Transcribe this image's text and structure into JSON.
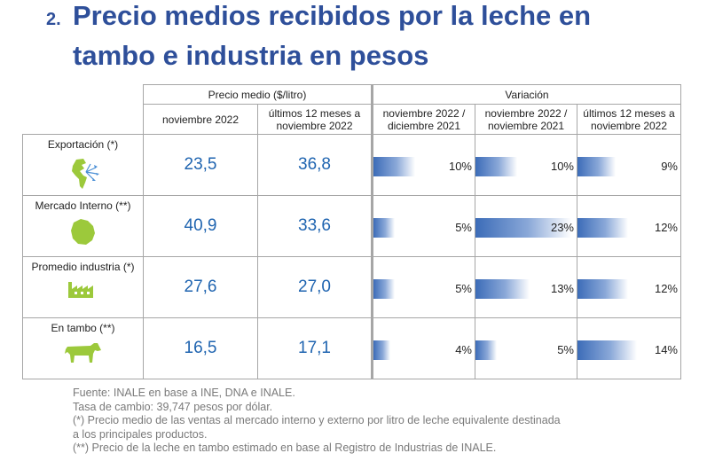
{
  "heading": {
    "number": "2.",
    "line1": "Precio medios recibidos por la leche en",
    "line2": "tambo e industria en pesos"
  },
  "table": {
    "group_precio": "Precio medio ($/litro)",
    "group_variacion": "Variación",
    "col_precio_1": "noviembre 2022",
    "col_precio_2": [
      "últimos 12 meses a",
      "noviembre 2022"
    ],
    "col_var_1": [
      "noviembre 2022 /",
      "diciembre 2021"
    ],
    "col_var_2": [
      "noviembre 2022 /",
      "noviembre 2021"
    ],
    "col_var_3": [
      "últimos 12 meses a",
      "noviembre 2022"
    ],
    "rows": [
      {
        "label": "Exportación (*)",
        "icon": "globe-americas-icon",
        "v1": "23,5",
        "v2": "36,8",
        "vars": [
          {
            "text": "10%",
            "value": 10
          },
          {
            "text": "10%",
            "value": 10
          },
          {
            "text": "9%",
            "value": 9
          }
        ]
      },
      {
        "label": "Mercado Interno (**)",
        "icon": "uruguay-map-icon",
        "v1": "40,9",
        "v2": "33,6",
        "vars": [
          {
            "text": "5%",
            "value": 5
          },
          {
            "text": "23%",
            "value": 23
          },
          {
            "text": "12%",
            "value": 12
          }
        ]
      },
      {
        "label": "Promedio industria (*)",
        "icon": "factory-icon",
        "v1": "27,6",
        "v2": "27,0",
        "vars": [
          {
            "text": "5%",
            "value": 5
          },
          {
            "text": "13%",
            "value": 13
          },
          {
            "text": "12%",
            "value": 12
          }
        ]
      },
      {
        "label": "En tambo (**)",
        "icon": "cow-icon",
        "v1": "16,5",
        "v2": "17,1",
        "vars": [
          {
            "text": "4%",
            "value": 4
          },
          {
            "text": "5%",
            "value": 5
          },
          {
            "text": "14%",
            "value": 14
          }
        ]
      }
    ]
  },
  "notes": [
    "Fuente: INALE en base a INE, DNA e INALE.",
    "Tasa de cambio: 39,747 pesos por dólar.",
    "(*) Precio medio de las ventas al mercado interno y externo por litro de leche equivalente destinada",
    "a los principales productos.",
    "(**) Precio de la leche en tambo estimado en base al Registro de Industrias de INALE."
  ],
  "colors": {
    "title": "#2e4f9a",
    "value": "#1f64b0",
    "icon": "#9cc93b",
    "bar": "#3c6cb8"
  }
}
